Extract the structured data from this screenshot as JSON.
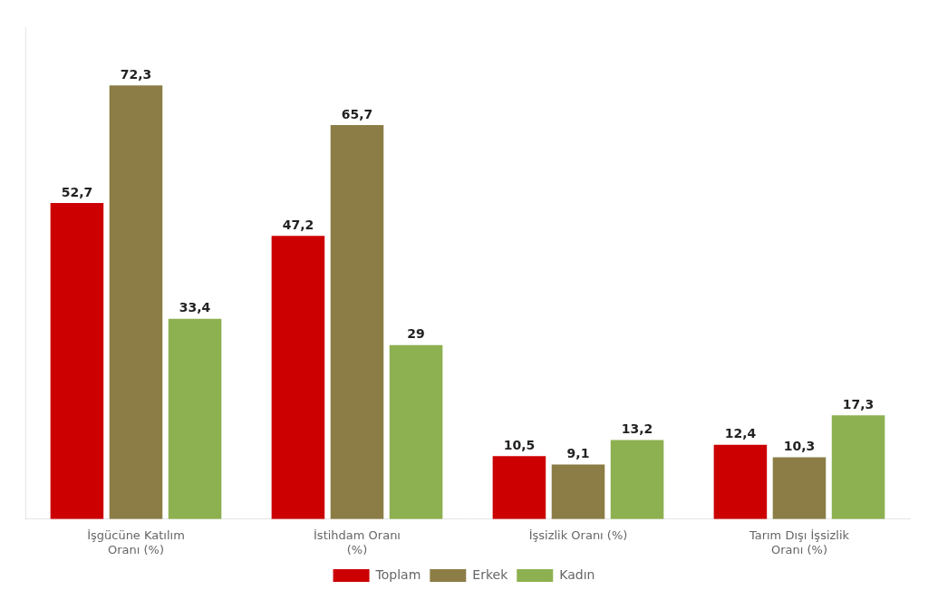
{
  "chart_data": {
    "type": "bar",
    "categories": [
      "İşgücüne Katılım\nOranı (%)",
      "İstihdam Oranı\n(%)",
      "İşsizlik Oranı (%)",
      "Tarım Dışı İşsizlik\nOranı (%)"
    ],
    "series": [
      {
        "name": "Toplam",
        "color": "#cc0000",
        "values": [
          52.7,
          47.2,
          10.5,
          12.4
        ],
        "value_labels": [
          "52,7",
          "47,2",
          "10,5",
          "12,4"
        ]
      },
      {
        "name": "Erkek",
        "color": "#8b7d45",
        "values": [
          72.3,
          65.7,
          9.1,
          10.3
        ],
        "value_labels": [
          "72,3",
          "65,7",
          "9,1",
          "10,3"
        ]
      },
      {
        "name": "Kadın",
        "color": "#8db050",
        "values": [
          33.4,
          29.0,
          13.2,
          17.3
        ],
        "value_labels": [
          "33,4",
          "29",
          "13,2",
          "17,3"
        ]
      }
    ],
    "ylim": [
      0,
      82
    ],
    "grid": false,
    "legend": "bottom",
    "data_labels": true,
    "tick_labels": "x"
  }
}
